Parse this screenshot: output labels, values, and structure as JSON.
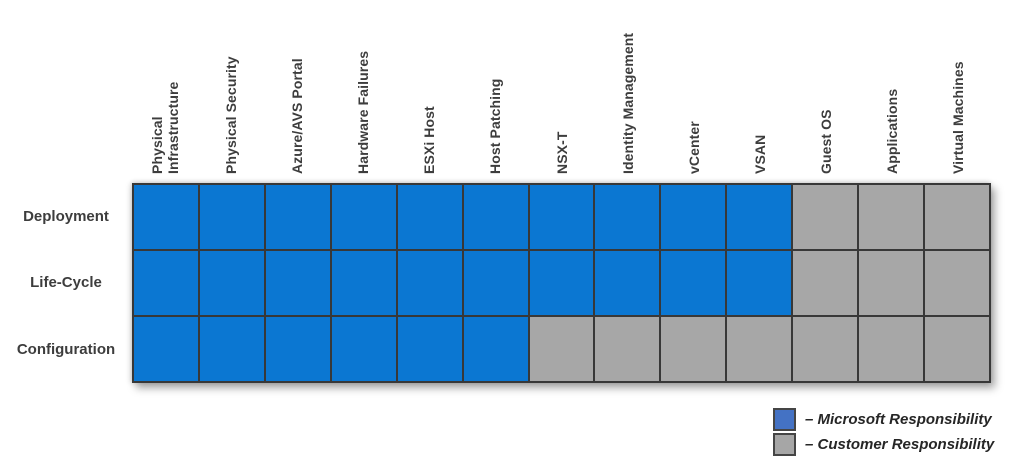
{
  "matrix": {
    "row_labels": [
      "Deployment",
      "Life-Cycle",
      "Configuration"
    ],
    "column_labels": [
      "Physical\nInfrastructure",
      "Physical Security",
      "Azure/AVS Portal",
      "Hardware Failures",
      "ESXi Host",
      "Host Patching",
      "NSX-T",
      "Identity Management",
      "vCenter",
      "VSAN",
      "Guest OS",
      "Applications",
      "Virtual Machines"
    ],
    "cells": [
      [
        "M",
        "M",
        "M",
        "M",
        "M",
        "M",
        "M",
        "M",
        "M",
        "M",
        "C",
        "C",
        "C"
      ],
      [
        "M",
        "M",
        "M",
        "M",
        "M",
        "M",
        "M",
        "M",
        "M",
        "M",
        "C",
        "C",
        "C"
      ],
      [
        "M",
        "M",
        "M",
        "M",
        "M",
        "M",
        "C",
        "C",
        "C",
        "C",
        "C",
        "C",
        "C"
      ]
    ],
    "cell_meaning": {
      "M": "Microsoft Responsibility",
      "C": "Customer Responsibility"
    }
  },
  "legend": {
    "items": [
      {
        "key": "microsoft",
        "label": "– Microsoft Responsibility"
      },
      {
        "key": "customer",
        "label": "– Customer Responsibility"
      }
    ]
  },
  "colors": {
    "microsoft_cell": "#0b77d2",
    "customer_cell": "#a7a7a7",
    "legend_microsoft": "#4472c4",
    "legend_customer": "#a6a6a6",
    "grid_line": "#383838",
    "label_text": "#3d3d3d"
  }
}
